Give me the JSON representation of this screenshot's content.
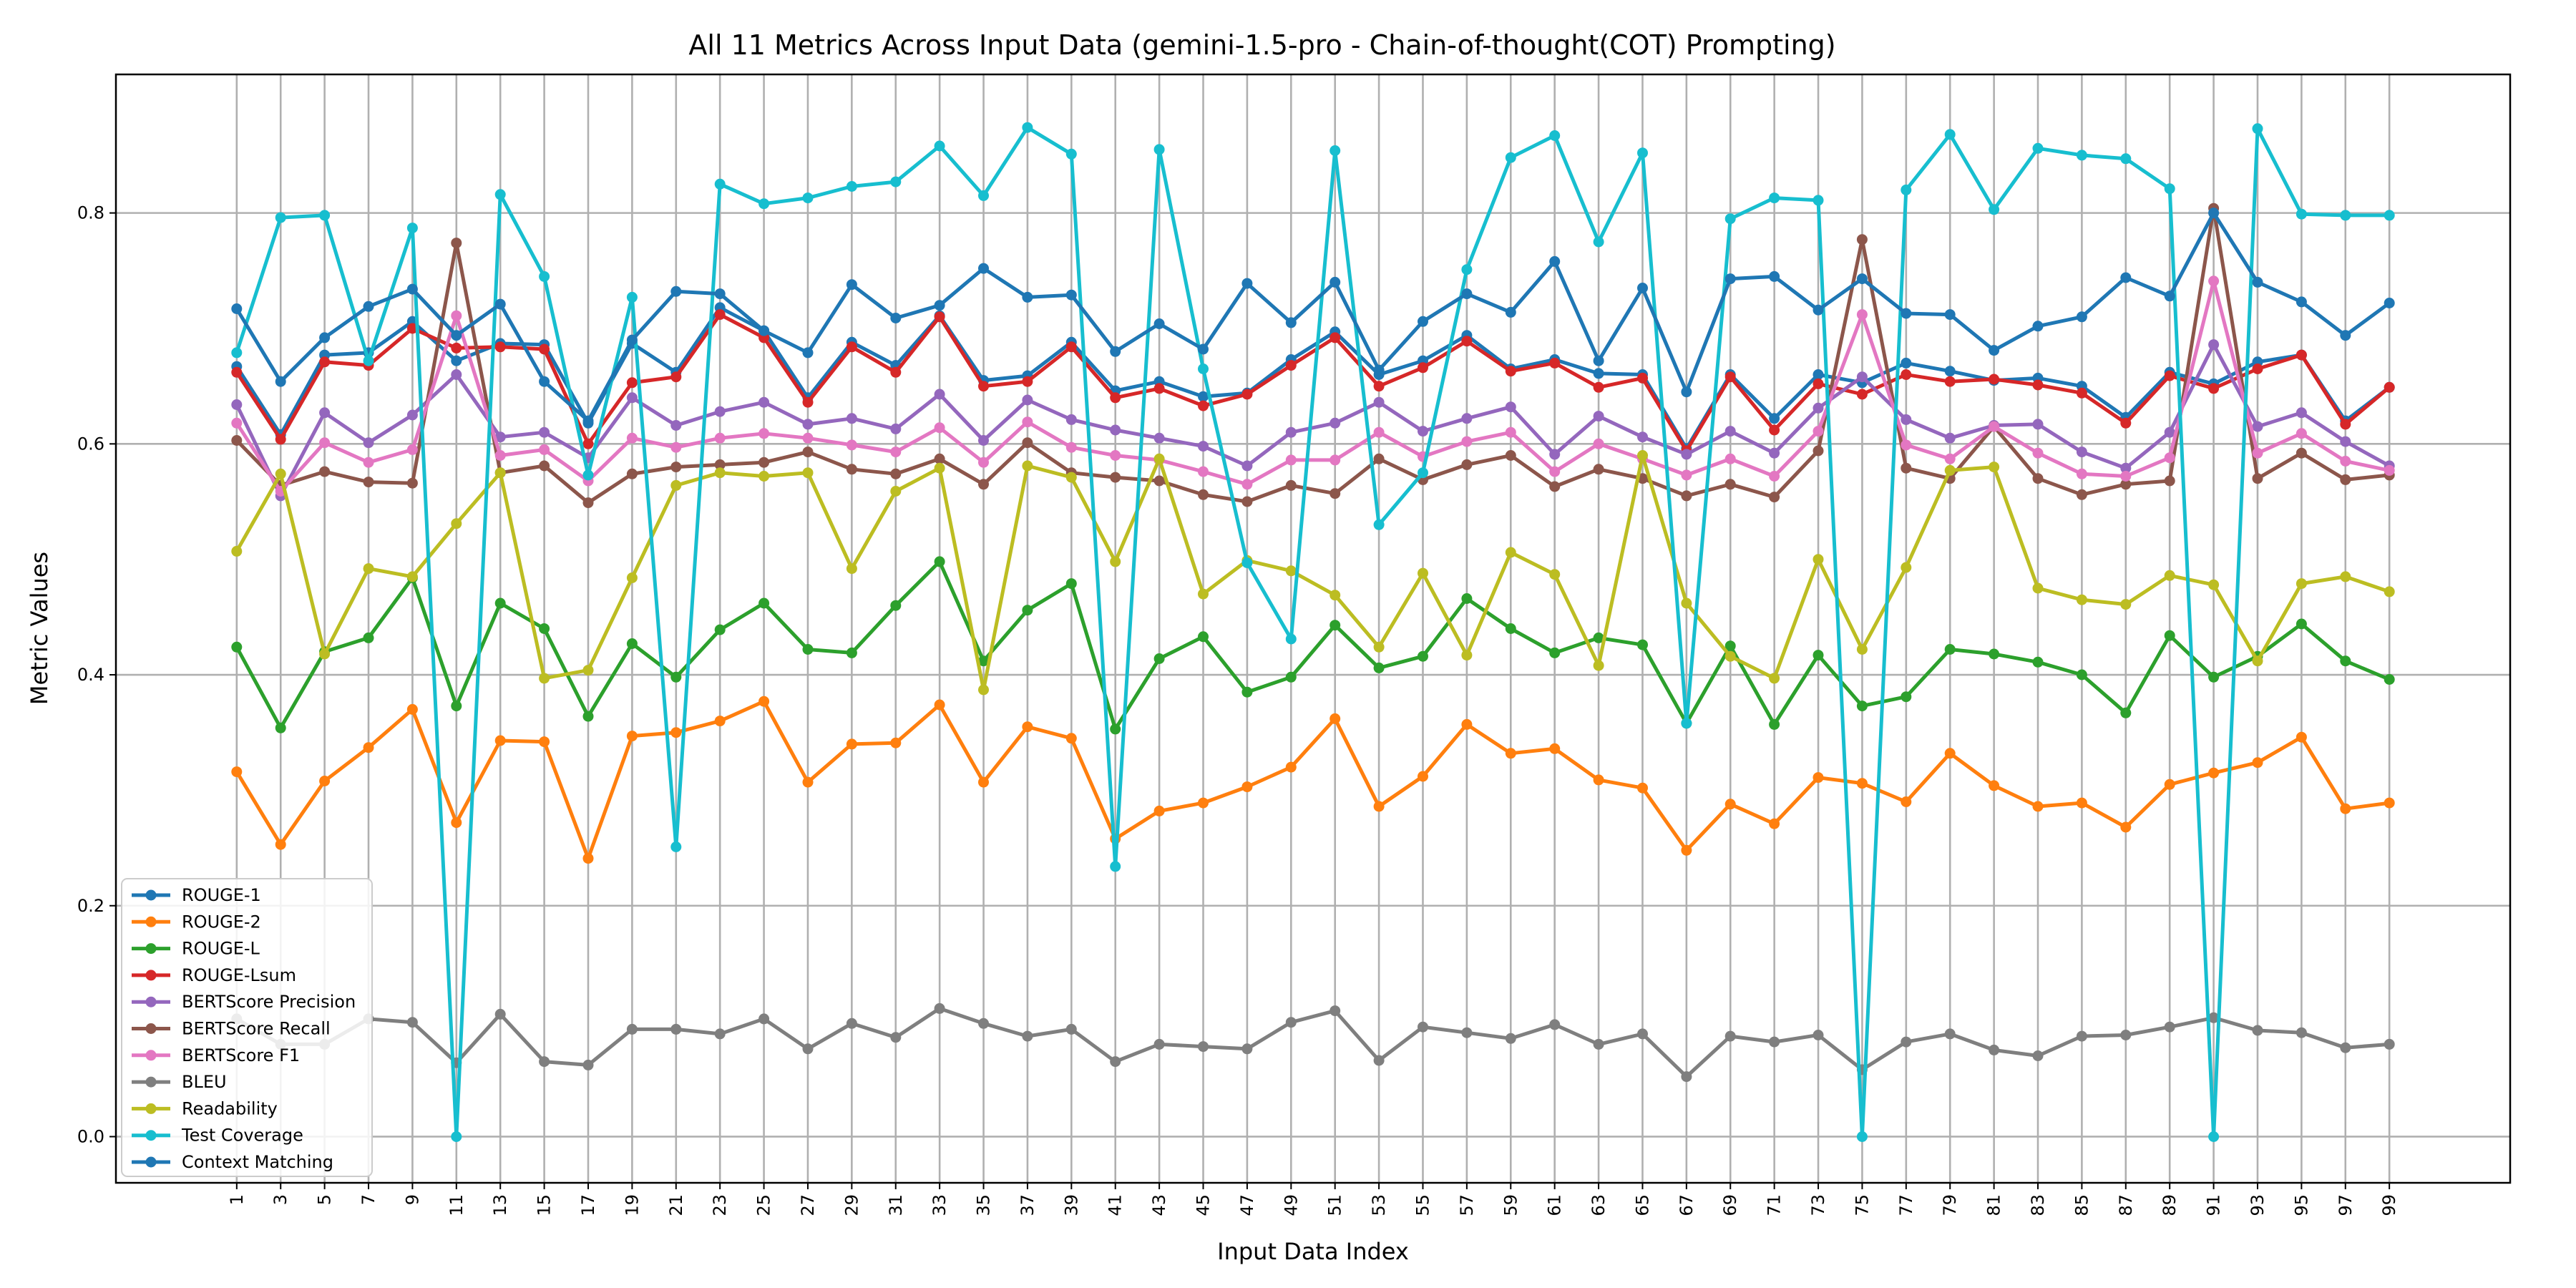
{
  "chart_data": {
    "type": "line",
    "title": "All 11 Metrics Across Input Data (gemini-1.5-pro - Chain-of-thought(COT) Prompting)",
    "xlabel": "Input Data Index",
    "ylabel": "Metric Values",
    "ylim": [
      -0.04,
      0.92
    ],
    "yticks": [
      0.0,
      0.2,
      0.4,
      0.6,
      0.8
    ],
    "ytick_labels": [
      "0.0",
      "0.2",
      "0.4",
      "0.6",
      "0.8"
    ],
    "x": [
      1,
      3,
      5,
      7,
      9,
      11,
      13,
      15,
      17,
      19,
      21,
      23,
      25,
      27,
      29,
      31,
      33,
      35,
      37,
      39,
      41,
      43,
      45,
      47,
      49,
      51,
      53,
      55,
      57,
      59,
      61,
      63,
      65,
      67,
      69,
      71,
      73,
      75,
      77,
      79,
      81,
      83,
      85,
      87,
      89,
      91,
      93,
      95,
      97,
      99
    ],
    "xlim": [
      -4.5,
      104.5
    ],
    "grid": true,
    "legend_position": "lower left",
    "series": [
      {
        "name": "ROUGE-1",
        "color": "#1f77b4",
        "values": [
          0.667,
          0.608,
          0.677,
          0.679,
          0.706,
          0.672,
          0.687,
          0.686,
          0.618,
          0.687,
          0.662,
          0.718,
          0.698,
          0.64,
          0.688,
          0.668,
          0.711,
          0.655,
          0.659,
          0.688,
          0.646,
          0.654,
          0.641,
          0.644,
          0.673,
          0.697,
          0.66,
          0.672,
          0.694,
          0.665,
          0.673,
          0.661,
          0.66,
          0.596,
          0.66,
          0.622,
          0.66,
          0.653,
          0.67,
          0.663,
          0.655,
          0.657,
          0.65,
          0.623,
          0.662,
          0.652,
          0.671,
          0.677,
          0.62,
          0.649
        ]
      },
      {
        "name": "ROUGE-2",
        "color": "#ff7f0e",
        "values": [
          0.316,
          0.253,
          0.308,
          0.337,
          0.37,
          0.272,
          0.343,
          0.342,
          0.241,
          0.347,
          0.35,
          0.36,
          0.377,
          0.307,
          0.34,
          0.341,
          0.374,
          0.307,
          0.355,
          0.345,
          0.258,
          0.282,
          0.289,
          0.303,
          0.32,
          0.362,
          0.286,
          0.312,
          0.357,
          0.332,
          0.336,
          0.309,
          0.302,
          0.248,
          0.288,
          0.271,
          0.311,
          0.306,
          0.29,
          0.332,
          0.304,
          0.286,
          0.289,
          0.268,
          0.305,
          0.315,
          0.324,
          0.346,
          0.284,
          0.289
        ]
      },
      {
        "name": "ROUGE-L",
        "color": "#2ca02c",
        "values": [
          0.424,
          0.354,
          0.42,
          0.432,
          0.484,
          0.373,
          0.462,
          0.44,
          0.364,
          0.427,
          0.398,
          0.439,
          0.462,
          0.422,
          0.419,
          0.46,
          0.498,
          0.412,
          0.456,
          0.479,
          0.353,
          0.414,
          0.433,
          0.385,
          0.398,
          0.443,
          0.406,
          0.416,
          0.466,
          0.44,
          0.419,
          0.432,
          0.426,
          0.358,
          0.425,
          0.357,
          0.417,
          0.373,
          0.381,
          0.422,
          0.418,
          0.411,
          0.4,
          0.367,
          0.434,
          0.398,
          0.416,
          0.444,
          0.412,
          0.396
        ]
      },
      {
        "name": "ROUGE-Lsum",
        "color": "#d62728",
        "values": [
          0.662,
          0.604,
          0.671,
          0.668,
          0.7,
          0.683,
          0.684,
          0.682,
          0.6,
          0.653,
          0.658,
          0.712,
          0.692,
          0.636,
          0.684,
          0.662,
          0.71,
          0.65,
          0.654,
          0.684,
          0.64,
          0.648,
          0.633,
          0.643,
          0.668,
          0.692,
          0.65,
          0.666,
          0.689,
          0.663,
          0.67,
          0.649,
          0.657,
          0.594,
          0.658,
          0.612,
          0.652,
          0.643,
          0.66,
          0.654,
          0.656,
          0.651,
          0.644,
          0.618,
          0.659,
          0.648,
          0.665,
          0.677,
          0.617,
          0.649
        ]
      },
      {
        "name": "BERTScore Precision",
        "color": "#9467bd",
        "values": [
          0.634,
          0.555,
          0.627,
          0.601,
          0.625,
          0.66,
          0.606,
          0.61,
          0.588,
          0.64,
          0.616,
          0.628,
          0.636,
          0.617,
          0.622,
          0.613,
          0.643,
          0.603,
          0.638,
          0.621,
          0.612,
          0.605,
          0.598,
          0.581,
          0.61,
          0.618,
          0.636,
          0.611,
          0.622,
          0.632,
          0.591,
          0.624,
          0.606,
          0.591,
          0.611,
          0.592,
          0.631,
          0.658,
          0.621,
          0.605,
          0.616,
          0.617,
          0.593,
          0.579,
          0.61,
          0.686,
          0.615,
          0.627,
          0.602,
          0.581
        ]
      },
      {
        "name": "BERTScore Recall",
        "color": "#8c564b",
        "values": [
          0.603,
          0.564,
          0.576,
          0.567,
          0.566,
          0.774,
          0.575,
          0.581,
          0.549,
          0.574,
          0.58,
          0.582,
          0.584,
          0.593,
          0.578,
          0.574,
          0.587,
          0.565,
          0.601,
          0.575,
          0.571,
          0.568,
          0.556,
          0.55,
          0.564,
          0.557,
          0.587,
          0.569,
          0.582,
          0.59,
          0.563,
          0.578,
          0.57,
          0.555,
          0.565,
          0.554,
          0.594,
          0.777,
          0.579,
          0.57,
          0.615,
          0.57,
          0.556,
          0.565,
          0.568,
          0.804,
          0.57,
          0.592,
          0.569,
          0.573
        ]
      },
      {
        "name": "BERTScore F1",
        "color": "#e377c2",
        "values": [
          0.618,
          0.559,
          0.601,
          0.584,
          0.595,
          0.711,
          0.59,
          0.595,
          0.568,
          0.605,
          0.597,
          0.605,
          0.609,
          0.605,
          0.599,
          0.593,
          0.614,
          0.584,
          0.619,
          0.597,
          0.59,
          0.586,
          0.576,
          0.565,
          0.586,
          0.586,
          0.61,
          0.589,
          0.602,
          0.61,
          0.576,
          0.6,
          0.587,
          0.573,
          0.587,
          0.572,
          0.611,
          0.712,
          0.599,
          0.587,
          0.615,
          0.592,
          0.574,
          0.572,
          0.588,
          0.741,
          0.592,
          0.609,
          0.585,
          0.577
        ]
      },
      {
        "name": "BLEU",
        "color": "#7f7f7f",
        "values": [
          0.102,
          0.08,
          0.08,
          0.102,
          0.099,
          0.064,
          0.106,
          0.065,
          0.062,
          0.093,
          0.093,
          0.089,
          0.102,
          0.076,
          0.098,
          0.086,
          0.111,
          0.098,
          0.087,
          0.093,
          0.065,
          0.08,
          0.078,
          0.076,
          0.099,
          0.109,
          0.066,
          0.095,
          0.09,
          0.085,
          0.097,
          0.08,
          0.089,
          0.052,
          0.087,
          0.082,
          0.088,
          0.058,
          0.082,
          0.089,
          0.075,
          0.07,
          0.087,
          0.088,
          0.095,
          0.103,
          0.092,
          0.09,
          0.077,
          0.08
        ]
      },
      {
        "name": "Readability",
        "color": "#bcbd22",
        "values": [
          0.507,
          0.574,
          0.418,
          0.492,
          0.485,
          0.531,
          0.575,
          0.397,
          0.404,
          0.484,
          0.564,
          0.575,
          0.572,
          0.575,
          0.492,
          0.559,
          0.579,
          0.387,
          0.581,
          0.571,
          0.498,
          0.587,
          0.47,
          0.499,
          0.49,
          0.469,
          0.424,
          0.488,
          0.417,
          0.506,
          0.487,
          0.408,
          0.59,
          0.462,
          0.416,
          0.397,
          0.5,
          0.422,
          0.493,
          0.577,
          0.58,
          0.475,
          0.465,
          0.461,
          0.486,
          0.478,
          0.412,
          0.479,
          0.485,
          0.472
        ]
      },
      {
        "name": "Test Coverage",
        "color": "#17becf",
        "values": [
          0.679,
          0.796,
          0.798,
          0.672,
          0.787,
          0.0,
          0.816,
          0.745,
          0.573,
          0.727,
          0.251,
          0.825,
          0.808,
          0.813,
          0.823,
          0.827,
          0.858,
          0.815,
          0.874,
          0.851,
          0.234,
          0.855,
          0.665,
          0.497,
          0.431,
          0.854,
          0.53,
          0.575,
          0.751,
          0.848,
          0.867,
          0.775,
          0.852,
          0.358,
          0.795,
          0.813,
          0.811,
          0.0,
          0.82,
          0.868,
          0.803,
          0.856,
          0.85,
          0.847,
          0.821,
          0.0,
          0.873,
          0.799,
          0.798,
          0.798
        ]
      },
      {
        "name": "Context Matching",
        "color": "#1f77b4",
        "values": [
          0.717,
          0.654,
          0.692,
          0.719,
          0.734,
          0.694,
          0.721,
          0.654,
          0.62,
          0.69,
          0.732,
          0.73,
          0.698,
          0.679,
          0.738,
          0.709,
          0.72,
          0.752,
          0.727,
          0.729,
          0.68,
          0.704,
          0.682,
          0.739,
          0.705,
          0.74,
          0.664,
          0.706,
          0.73,
          0.714,
          0.758,
          0.672,
          0.735,
          0.645,
          0.743,
          0.745,
          0.716,
          0.743,
          0.713,
          0.712,
          0.681,
          0.702,
          0.71,
          0.744,
          0.728,
          0.8,
          0.74,
          0.723,
          0.694,
          0.722
        ]
      }
    ]
  }
}
